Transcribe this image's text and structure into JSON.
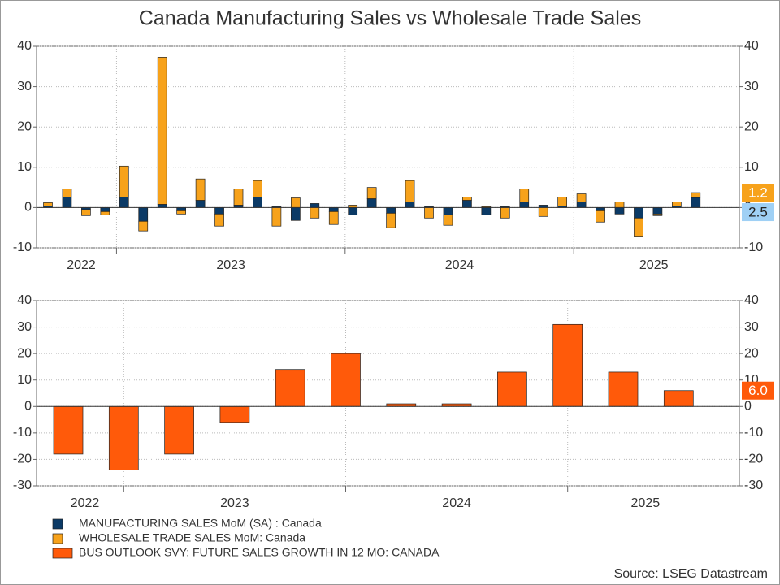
{
  "chart_data": [
    {
      "type": "bar",
      "stacked": true,
      "title": "Canada Manufacturing Sales vs Wholesale Trade Sales",
      "categories": [
        null,
        null,
        null,
        null,
        null,
        null,
        null,
        null,
        null,
        null,
        null,
        null,
        null,
        null,
        null,
        null,
        null,
        null,
        null,
        null,
        null,
        null,
        null,
        null,
        null,
        null,
        null,
        null,
        null,
        null,
        null,
        null,
        null,
        null,
        null
      ],
      "series": [
        {
          "name": "MANUFACTURING SALES MoM (SA) : Canada",
          "color": "#0b3a66",
          "label_color": "#9fd0f5",
          "values": [
            0.4,
            2.6,
            -0.5,
            -1.0,
            2.6,
            -3.4,
            0.8,
            -0.8,
            1.8,
            -1.6,
            0.6,
            2.6,
            0.2,
            -3.2,
            1.0,
            -1.0,
            -1.8,
            2.2,
            -1.4,
            1.4,
            0.2,
            -1.8,
            1.8,
            -1.8,
            0.2,
            1.4,
            0.6,
            0.4,
            1.4,
            -0.8,
            -1.6,
            -2.6,
            -1.6,
            0.4,
            2.5
          ]
        },
        {
          "name": "WHOLESALE TRADE SALES MoM: Canada",
          "color": "#f7a21b",
          "label_color": "#f7a21b",
          "values": [
            0.8,
            2.0,
            -1.5,
            -0.8,
            7.7,
            -2.4,
            36.5,
            -0.8,
            5.3,
            -3.0,
            4.0,
            4.1,
            -4.6,
            2.4,
            -2.6,
            -3.2,
            0.6,
            2.8,
            -3.6,
            5.3,
            -2.6,
            -2.6,
            0.8,
            0.2,
            -2.6,
            3.2,
            -2.2,
            2.2,
            2.0,
            -2.8,
            1.4,
            -4.7,
            -0.4,
            1.0,
            1.2
          ]
        }
      ],
      "ylim": [
        -10,
        40
      ],
      "yticks": [
        -10,
        0,
        10,
        20,
        30,
        40
      ],
      "xticks": [
        3.6,
        15.6,
        27.6
      ],
      "xlabels": [
        {
          "value": 1.75,
          "label": "2022"
        },
        {
          "value": 9.6,
          "label": "2023"
        },
        {
          "value": 21.6,
          "label": "2024"
        },
        {
          "value": 31.8,
          "label": "2025"
        }
      ],
      "grid": true
    },
    {
      "type": "bar",
      "categories": [
        null,
        null,
        null,
        null,
        null,
        null,
        null,
        null,
        null,
        null,
        null,
        null
      ],
      "series": [
        {
          "name": "BUS OUTLOOK SVY: FUTURE SALES GROWTH IN 12 MO: CANADA",
          "color": "#ff5a0a",
          "label_color": "#ff5a0a",
          "values": [
            -18,
            -24,
            -18,
            -6,
            14,
            20,
            1,
            1,
            13,
            31,
            13,
            6
          ],
          "value_labels": [
            null,
            null,
            null,
            null,
            null,
            null,
            null,
            null,
            null,
            null,
            null,
            "6.0"
          ]
        }
      ],
      "ylim": [
        -30,
        40
      ],
      "yticks": [
        -30,
        -20,
        -10,
        0,
        10,
        20,
        30,
        40
      ],
      "xticks": [
        1,
        5,
        9
      ],
      "xlabels": [
        {
          "value": 0.3,
          "label": "2022"
        },
        {
          "value": 3,
          "label": "2023"
        },
        {
          "value": 7,
          "label": "2024"
        },
        {
          "value": 10.4,
          "label": "2025"
        }
      ],
      "grid": true
    }
  ],
  "source": "Source: LSEG Datastream"
}
